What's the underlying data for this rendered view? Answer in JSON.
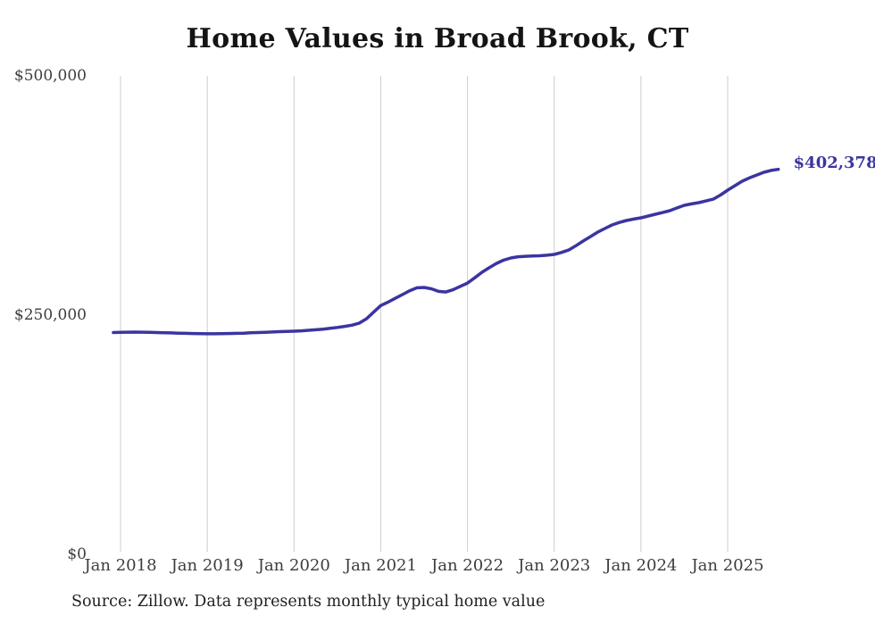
{
  "title": "Home Values in Broad Brook, CT",
  "annotation": {
    "final_value_label": "$402,378"
  },
  "source": "Source: Zillow. Data represents monthly typical home value",
  "colors": {
    "line": "#3a35a0",
    "annotation_text": "#3a35a0",
    "grid": "#cccccc",
    "axis_text": "#3d3d3d",
    "title_text": "#141414",
    "source_text": "#1f1f1f",
    "background": "#ffffff"
  },
  "chart_data": {
    "type": "line",
    "title": "Home Values in Broad Brook, CT",
    "xlabel": "",
    "ylabel": "",
    "ylim": [
      0,
      500000
    ],
    "y_ticks": [
      0,
      250000,
      500000
    ],
    "y_tick_labels": [
      "$0",
      "$250,000",
      "$500,000"
    ],
    "x_tick_labels": [
      "Jan 2018",
      "Jan 2019",
      "Jan 2020",
      "Jan 2021",
      "Jan 2022",
      "Jan 2023",
      "Jan 2024",
      "Jan 2025"
    ],
    "grid": "vertical-only",
    "legend_position": "none",
    "final_value_label": "$402,378",
    "series": [
      {
        "name": "Monthly typical home value",
        "x": [
          "2017-12",
          "2018-01",
          "2018-02",
          "2018-03",
          "2018-04",
          "2018-05",
          "2018-06",
          "2018-07",
          "2018-08",
          "2018-09",
          "2018-10",
          "2018-11",
          "2018-12",
          "2019-01",
          "2019-02",
          "2019-03",
          "2019-04",
          "2019-05",
          "2019-06",
          "2019-07",
          "2019-08",
          "2019-09",
          "2019-10",
          "2019-11",
          "2019-12",
          "2020-01",
          "2020-02",
          "2020-03",
          "2020-04",
          "2020-05",
          "2020-06",
          "2020-07",
          "2020-08",
          "2020-09",
          "2020-10",
          "2020-11",
          "2020-12",
          "2021-01",
          "2021-02",
          "2021-03",
          "2021-04",
          "2021-05",
          "2021-06",
          "2021-07",
          "2021-08",
          "2021-09",
          "2021-10",
          "2021-11",
          "2021-12",
          "2022-01",
          "2022-02",
          "2022-03",
          "2022-04",
          "2022-05",
          "2022-06",
          "2022-07",
          "2022-08",
          "2022-09",
          "2022-10",
          "2022-11",
          "2022-12",
          "2023-01",
          "2023-02",
          "2023-03",
          "2023-04",
          "2023-05",
          "2023-06",
          "2023-07",
          "2023-08",
          "2023-09",
          "2023-10",
          "2023-11",
          "2023-12",
          "2024-01",
          "2024-02",
          "2024-03",
          "2024-04",
          "2024-05",
          "2024-06",
          "2024-07",
          "2024-08",
          "2024-09",
          "2024-10",
          "2024-11",
          "2024-12",
          "2025-01",
          "2025-02",
          "2025-03",
          "2025-04",
          "2025-05",
          "2025-06",
          "2025-07",
          "2025-08"
        ],
        "values": [
          231800,
          232000,
          232200,
          232300,
          232200,
          232000,
          231800,
          231600,
          231400,
          231200,
          231000,
          230800,
          230600,
          230500,
          230500,
          230600,
          230800,
          231000,
          231200,
          231500,
          231800,
          232100,
          232400,
          232700,
          232900,
          233200,
          233600,
          234100,
          234700,
          235400,
          236200,
          237100,
          238200,
          239500,
          241500,
          246000,
          253000,
          260000,
          263500,
          267500,
          271500,
          275500,
          278500,
          278900,
          277500,
          274800,
          274200,
          276500,
          280000,
          283500,
          289000,
          294800,
          299500,
          304000,
          307500,
          309700,
          311000,
          311500,
          311800,
          312000,
          312600,
          313400,
          315500,
          318000,
          322500,
          327400,
          332000,
          336700,
          340500,
          344200,
          346800,
          348900,
          350400,
          351700,
          353500,
          355400,
          357200,
          359100,
          362000,
          364700,
          366200,
          367500,
          369300,
          371200,
          375500,
          380600,
          385300,
          389900,
          393400,
          396400,
          399300,
          401200,
          402378
        ]
      }
    ]
  }
}
